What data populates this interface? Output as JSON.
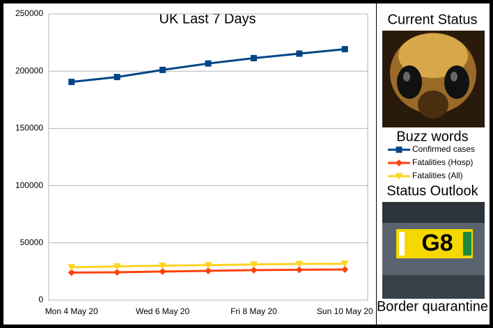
{
  "chart_data": {
    "type": "line",
    "title": "UK Last 7 Days",
    "categories": [
      "Mon 4 May 20",
      null,
      "Wed 6 May 20",
      null,
      "Fri 8 May 20",
      null,
      "Sun 10 May 20"
    ],
    "series": [
      {
        "name": "Confirmed cases",
        "color": "#004586",
        "marker": "square",
        "values": [
          190600,
          194900,
          201100,
          206700,
          211400,
          215300,
          219200
        ]
      },
      {
        "name": "Fatalities (Hosp)",
        "color": "#ff420e",
        "marker": "diamond",
        "values": [
          24100,
          24300,
          25000,
          25600,
          26200,
          26500,
          26800
        ]
      },
      {
        "name": "Fatalities (All)",
        "color": "#ffd320",
        "marker": "triangle-down",
        "values": [
          28700,
          29400,
          30100,
          30600,
          31200,
          31600,
          31800
        ]
      }
    ],
    "ylim": [
      0,
      250000
    ],
    "yticks": [
      0,
      50000,
      100000,
      150000,
      200000,
      250000
    ],
    "grid": true
  },
  "panel": {
    "current_status": "Current Status",
    "legend_title": "Buzz words",
    "status_outlook": "Status Outlook",
    "caption": "Border quarantine",
    "sign_text": "G8"
  }
}
